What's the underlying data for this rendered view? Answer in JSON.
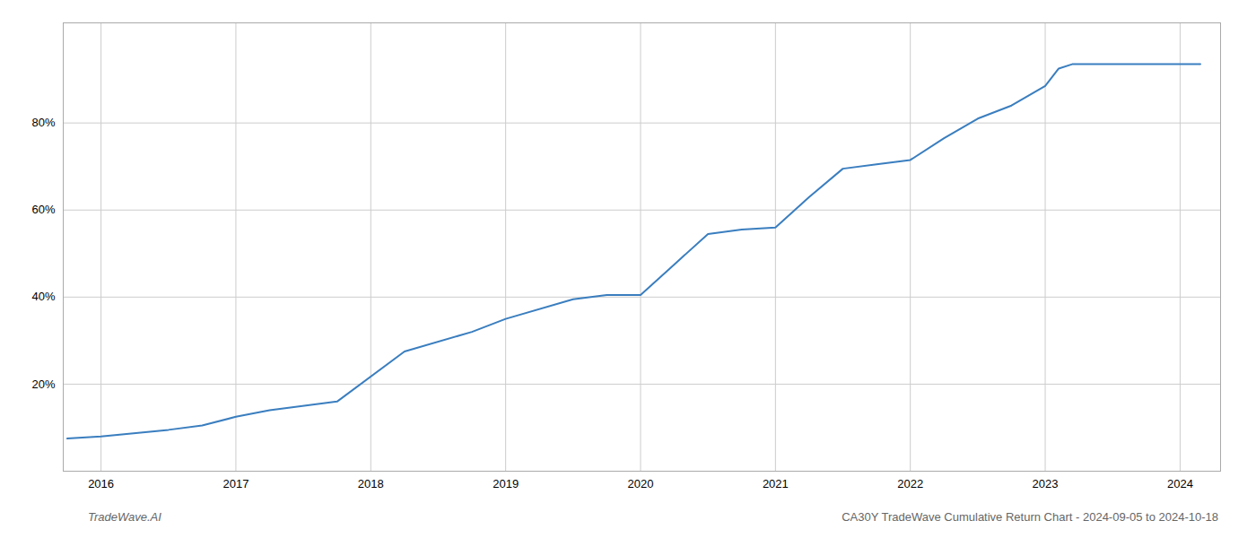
{
  "chart_data": {
    "type": "line",
    "x": [
      2015.75,
      2016.0,
      2016.5,
      2016.75,
      2017.0,
      2017.25,
      2017.75,
      2018.25,
      2018.75,
      2019.0,
      2019.5,
      2019.75,
      2020.0,
      2020.25,
      2020.5,
      2020.75,
      2021.0,
      2021.25,
      2021.5,
      2021.75,
      2022.0,
      2022.25,
      2022.5,
      2022.75,
      2023.0,
      2023.1,
      2023.2,
      2024.0,
      2024.15
    ],
    "values": [
      7.5,
      8.0,
      9.5,
      10.5,
      12.5,
      14.0,
      16.0,
      27.5,
      32.0,
      35.0,
      39.5,
      40.5,
      40.5,
      47.5,
      54.5,
      55.5,
      56.0,
      63.0,
      69.5,
      70.5,
      71.5,
      76.5,
      81.0,
      84.0,
      88.5,
      92.5,
      93.5,
      93.5,
      93.5
    ],
    "color": "#3a7ebf",
    "xlim": [
      2015.72,
      2024.3
    ],
    "xticks": [
      2016,
      2017,
      2018,
      2019,
      2020,
      2021,
      2022,
      2023,
      2024
    ],
    "ylim": [
      0,
      103
    ],
    "yticks": [
      {
        "value": 20,
        "label": "20%"
      },
      {
        "value": 40,
        "label": "40%"
      },
      {
        "value": 60,
        "label": "60%"
      },
      {
        "value": 80,
        "label": "80%"
      }
    ],
    "grid": true,
    "annotations": [
      "TradeWave.AI",
      "CA30Y TradeWave Cumulative Return Chart - 2024-09-05 to 2024-10-18"
    ]
  }
}
